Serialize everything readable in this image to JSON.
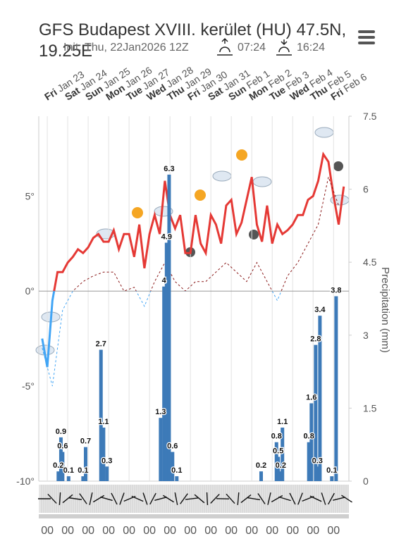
{
  "chart_data": {
    "type": "line",
    "title": "GFS Budapest XVIII. kerület (HU) 47.5N, 19.25E",
    "subtitle": "Init: Thu, 22Jan2026 12Z",
    "sunrise": "07:24",
    "sunset": "16:24",
    "y2label": "Precipitation (mm)",
    "weekdays": [
      "Fri",
      "Sat",
      "Sun",
      "Mon",
      "Tue",
      "Wed",
      "Thu",
      "Fri",
      "Sat",
      "Sun",
      "Mon",
      "Tue",
      "Wed",
      "Thu",
      "Fri"
    ],
    "categories": [
      "Jan 23",
      "Jan 24",
      "Jan 25",
      "Jan 26",
      "Jan 27",
      "Jan 28",
      "Jan 29",
      "Jan 30",
      "Jan 31",
      "Feb 1",
      "Feb 2",
      "Feb 3",
      "Feb 4",
      "Feb 5",
      "Feb 6"
    ],
    "hour_labels": [
      "00",
      "00",
      "00",
      "00",
      "00",
      "00",
      "00",
      "00",
      "00",
      "00",
      "00",
      "00",
      "00",
      "00",
      "00"
    ],
    "xlim": [
      -10,
      354
    ],
    "ylim": [
      -10,
      9.2
    ],
    "yticks": [
      {
        "value": -10,
        "label": "-10°"
      },
      {
        "value": -5,
        "label": "-5°"
      },
      {
        "value": 0,
        "label": "0°"
      },
      {
        "value": 5,
        "label": "5°"
      }
    ],
    "y2lim": [
      0,
      7.5
    ],
    "y2ticks": [
      0,
      1.5,
      3,
      4.5,
      6,
      7.5
    ],
    "series": [
      {
        "color": "#e53935",
        "color_below_zero": "#42a5f5",
        "x": [
          -6,
          0,
          6,
          12,
          18,
          24,
          30,
          36,
          42,
          48,
          54,
          60,
          66,
          72,
          78,
          84,
          90,
          96,
          102,
          108,
          114,
          120,
          126,
          132,
          138,
          144,
          150,
          156,
          162,
          168,
          174,
          180,
          186,
          192,
          198,
          204,
          210,
          216,
          222,
          228,
          234,
          240,
          246,
          252,
          258,
          264,
          270,
          276,
          282,
          288,
          294,
          300,
          306,
          312,
          318,
          324,
          330,
          336,
          342,
          348
        ],
        "values": [
          -2.5,
          -4.0,
          -0.5,
          1.0,
          1.0,
          1.5,
          1.8,
          2.2,
          2.0,
          2.3,
          2.8,
          3.0,
          2.6,
          2.6,
          3.2,
          2.2,
          3.0,
          3.0,
          1.8,
          3.5,
          1.2,
          3.0,
          4.0,
          3.0,
          5.8,
          4.0,
          3.3,
          4.0,
          2.0,
          2.0,
          4.0,
          2.5,
          2.0,
          4.0,
          3.5,
          2.5,
          4.5,
          4.8,
          3.0,
          3.6,
          4.8,
          6.0,
          3.5,
          2.6,
          4.5,
          2.5,
          3.5,
          3.0,
          3.2,
          3.5,
          4.0,
          4.0,
          4.8,
          5.0,
          5.8,
          7.2,
          6.8,
          5.0,
          3.5,
          5.5
        ]
      },
      {
        "color": "#8b1a1a",
        "color_below_zero": "#42a5f5",
        "dashed": true,
        "x": [
          -6,
          6,
          18,
          30,
          42,
          54,
          66,
          78,
          90,
          102,
          114,
          126,
          138,
          150,
          162,
          174,
          186,
          198,
          210,
          222,
          234,
          246,
          258,
          270,
          282,
          294,
          306,
          318,
          330,
          342
        ],
        "values": [
          -3,
          -5,
          -1,
          0,
          0.5,
          0.8,
          1.0,
          1.0,
          0,
          0.2,
          -0.8,
          0.5,
          1.5,
          0.5,
          0,
          0.5,
          0.5,
          1.0,
          1.5,
          1.0,
          0.5,
          1.5,
          0.5,
          -0.5,
          0.8,
          1.5,
          2.5,
          3.5,
          6.0,
          4.5
        ]
      },
      {
        "type": "bar",
        "axis": "y2",
        "color": "#3d7ab8",
        "x": [
          13,
          16,
          18,
          25,
          42,
          45,
          63,
          66,
          70,
          133,
          137,
          140,
          143,
          147,
          152,
          251,
          269,
          271,
          274,
          276,
          307,
          310,
          315,
          317,
          320,
          334,
          339
        ],
        "values": [
          0.2,
          0.9,
          0.6,
          0.1,
          0.1,
          0.7,
          2.7,
          1.1,
          0.3,
          1.3,
          4.0,
          4.9,
          6.3,
          0.6,
          0.1,
          0.2,
          0.8,
          0.5,
          0.2,
          1.1,
          0.8,
          1.6,
          2.8,
          0.3,
          3.4,
          0.1,
          3.8
        ]
      }
    ]
  }
}
